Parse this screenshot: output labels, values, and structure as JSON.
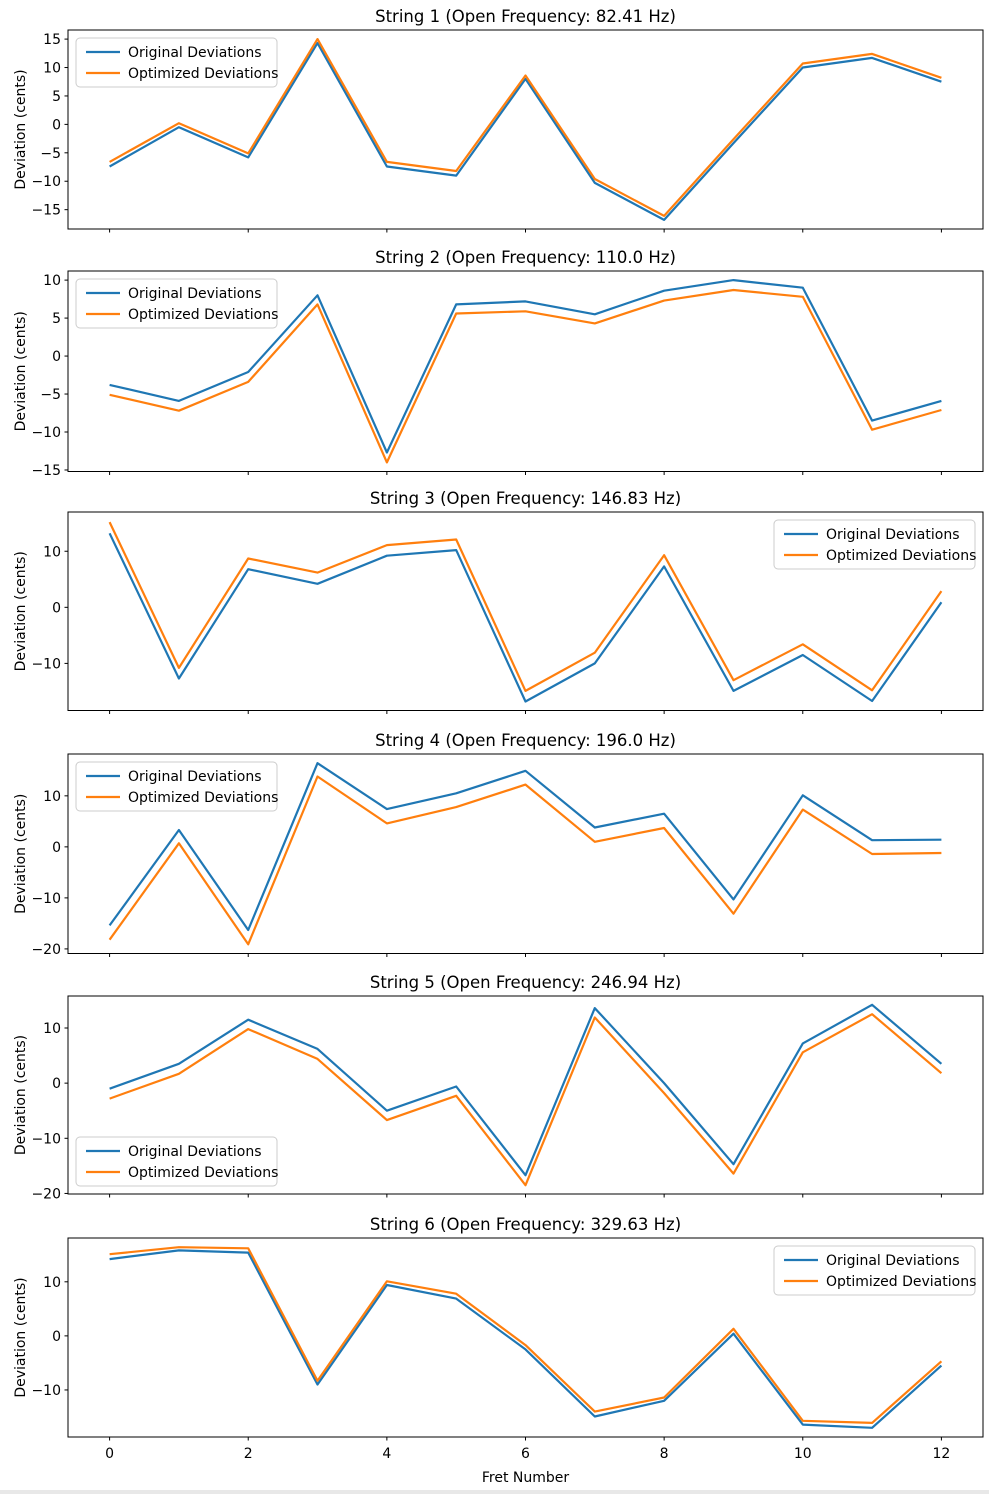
{
  "figure": {
    "xlabel": "Fret Number",
    "ylabel": "Deviation (cents)",
    "x_tick_labels": [
      "0",
      "2",
      "4",
      "6",
      "8",
      "10",
      "12"
    ],
    "legend_labels": [
      "Original Deviations",
      "Optimized Deviations"
    ],
    "colors": {
      "original": "#1f77b4",
      "optimized": "#ff7f0e",
      "background": "#ffffff",
      "axes_edge": "#000000",
      "legend_border": "#cccccc"
    }
  },
  "chart_data": [
    {
      "type": "line",
      "title": "String 1 (Open Frequency: 82.41 Hz)",
      "ylabel": "Deviation (cents)",
      "x": [
        0,
        1,
        2,
        3,
        4,
        5,
        6,
        7,
        8,
        9,
        10,
        11,
        12
      ],
      "series": [
        {
          "name": "Original Deviations",
          "color": "#1f77b4",
          "values": [
            -7.4,
            -0.5,
            -5.8,
            14.3,
            -7.4,
            -9.0,
            8.0,
            -10.3,
            -16.8,
            -3.3,
            10.0,
            11.7,
            7.5
          ]
        },
        {
          "name": "Optimized Deviations",
          "color": "#ff7f0e",
          "values": [
            -6.6,
            0.2,
            -5.1,
            15.0,
            -6.6,
            -8.2,
            8.6,
            -9.6,
            -16.1,
            -2.6,
            10.7,
            12.4,
            8.2
          ]
        }
      ],
      "yticks": [
        15,
        10,
        5,
        0,
        -5,
        -10,
        -15
      ],
      "ytick_labels": [
        "15",
        "10",
        "5",
        "0",
        "−5",
        "−10",
        "−15"
      ],
      "ylim": [
        -18.4,
        16.6
      ],
      "legend_position": "top-left",
      "grid": false
    },
    {
      "type": "line",
      "title": "String 2 (Open Frequency: 110.0 Hz)",
      "ylabel": "Deviation (cents)",
      "x": [
        0,
        1,
        2,
        3,
        4,
        5,
        6,
        7,
        8,
        9,
        10,
        11,
        12
      ],
      "series": [
        {
          "name": "Original Deviations",
          "color": "#1f77b4",
          "values": [
            -3.8,
            -5.9,
            -2.1,
            8.0,
            -12.7,
            6.8,
            7.2,
            5.5,
            8.6,
            10.0,
            9.0,
            -8.5,
            -5.9
          ]
        },
        {
          "name": "Optimized Deviations",
          "color": "#ff7f0e",
          "values": [
            -5.1,
            -7.2,
            -3.4,
            6.8,
            -14.0,
            5.6,
            5.9,
            4.3,
            7.3,
            8.7,
            7.8,
            -9.7,
            -7.1
          ]
        }
      ],
      "yticks": [
        10,
        5,
        0,
        -5,
        -10,
        -15
      ],
      "ytick_labels": [
        "10",
        "5",
        "0",
        "−5",
        "−10",
        "−15"
      ],
      "ylim": [
        -15.2,
        11.2
      ],
      "legend_position": "top-left",
      "grid": false
    },
    {
      "type": "line",
      "title": "String 3 (Open Frequency: 146.83 Hz)",
      "ylabel": "Deviation (cents)",
      "x": [
        0,
        1,
        2,
        3,
        4,
        5,
        6,
        7,
        8,
        9,
        10,
        11,
        12
      ],
      "series": [
        {
          "name": "Original Deviations",
          "color": "#1f77b4",
          "values": [
            13.2,
            -12.7,
            6.8,
            4.2,
            9.2,
            10.2,
            -16.8,
            -10.0,
            7.3,
            -14.9,
            -8.5,
            -16.7,
            0.9
          ]
        },
        {
          "name": "Optimized Deviations",
          "color": "#ff7f0e",
          "values": [
            15.2,
            -10.8,
            8.7,
            6.2,
            11.1,
            12.1,
            -14.9,
            -8.1,
            9.3,
            -13.0,
            -6.6,
            -14.8,
            2.9
          ]
        }
      ],
      "yticks": [
        10,
        0,
        -10
      ],
      "ytick_labels": [
        "10",
        "0",
        "−10"
      ],
      "ylim": [
        -18.4,
        17.0
      ],
      "legend_position": "top-right",
      "grid": false
    },
    {
      "type": "line",
      "title": "String 4 (Open Frequency: 196.0 Hz)",
      "ylabel": "Deviation (cents)",
      "x": [
        0,
        1,
        2,
        3,
        4,
        5,
        6,
        7,
        8,
        9,
        10,
        11,
        12
      ],
      "series": [
        {
          "name": "Original Deviations",
          "color": "#1f77b4",
          "values": [
            -15.4,
            3.3,
            -16.3,
            16.4,
            7.4,
            10.5,
            14.9,
            3.8,
            6.5,
            -10.3,
            10.1,
            1.3,
            1.4
          ]
        },
        {
          "name": "Optimized Deviations",
          "color": "#ff7f0e",
          "values": [
            -18.2,
            0.7,
            -19.1,
            13.8,
            4.6,
            7.8,
            12.2,
            1.0,
            3.7,
            -13.1,
            7.3,
            -1.4,
            -1.2
          ]
        }
      ],
      "yticks": [
        10,
        0,
        -10,
        -20
      ],
      "ytick_labels": [
        "10",
        "0",
        "−10",
        "−20"
      ],
      "ylim": [
        -20.9,
        18.2
      ],
      "legend_position": "top-left",
      "grid": false
    },
    {
      "type": "line",
      "title": "String 5 (Open Frequency: 246.94 Hz)",
      "ylabel": "Deviation (cents)",
      "x": [
        0,
        1,
        2,
        3,
        4,
        5,
        6,
        7,
        8,
        9,
        10,
        11,
        12
      ],
      "series": [
        {
          "name": "Original Deviations",
          "color": "#1f77b4",
          "values": [
            -1.0,
            3.5,
            11.5,
            6.2,
            -5.0,
            -0.6,
            -16.7,
            13.6,
            0.0,
            -14.7,
            7.2,
            14.2,
            3.5
          ]
        },
        {
          "name": "Optimized Deviations",
          "color": "#ff7f0e",
          "values": [
            -2.8,
            1.7,
            9.8,
            4.4,
            -6.7,
            -2.3,
            -18.5,
            11.9,
            -1.8,
            -16.4,
            5.6,
            12.5,
            1.8
          ]
        }
      ],
      "yticks": [
        10,
        0,
        -10,
        -20
      ],
      "ytick_labels": [
        "10",
        "0",
        "−10",
        "−20"
      ],
      "ylim": [
        -20.1,
        15.8
      ],
      "legend_position": "bottom-left",
      "grid": false
    },
    {
      "type": "line",
      "title": "String 6 (Open Frequency: 329.63 Hz)",
      "ylabel": "Deviation (cents)",
      "x": [
        0,
        1,
        2,
        3,
        4,
        5,
        6,
        7,
        8,
        9,
        10,
        11,
        12
      ],
      "series": [
        {
          "name": "Original Deviations",
          "color": "#1f77b4",
          "values": [
            14.2,
            15.8,
            15.4,
            -9.0,
            9.4,
            6.9,
            -2.5,
            -14.9,
            -12.0,
            0.4,
            -16.4,
            -17.0,
            -5.5
          ]
        },
        {
          "name": "Optimized Deviations",
          "color": "#ff7f0e",
          "values": [
            15.1,
            16.4,
            16.2,
            -8.3,
            10.1,
            7.8,
            -1.7,
            -14.0,
            -11.4,
            1.3,
            -15.7,
            -16.1,
            -4.7
          ]
        }
      ],
      "yticks": [
        10,
        0,
        -10
      ],
      "ytick_labels": [
        "10",
        "0",
        "−10"
      ],
      "ylim": [
        -18.7,
        18.1
      ],
      "legend_position": "top-right",
      "grid": false
    }
  ]
}
